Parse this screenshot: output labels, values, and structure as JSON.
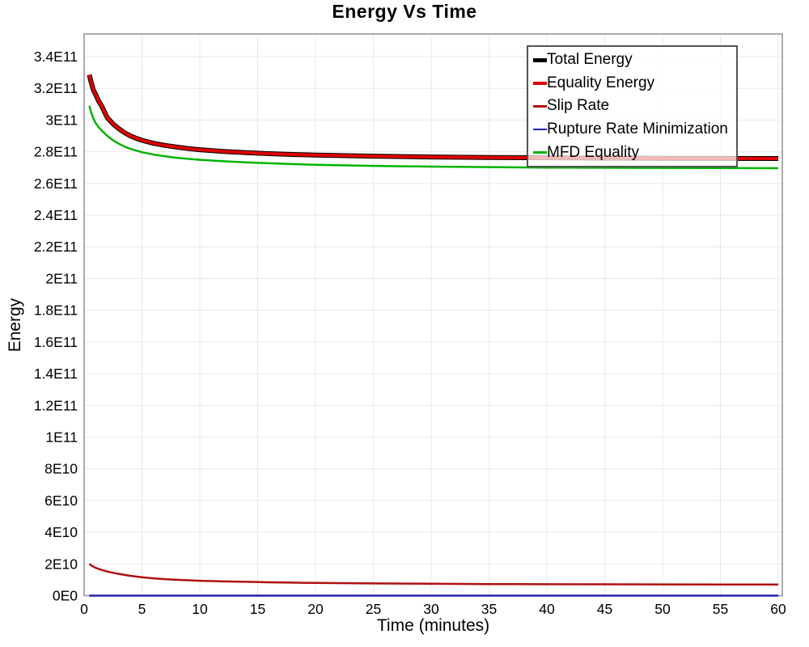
{
  "chart_data": {
    "type": "line",
    "title": "Energy Vs Time",
    "xlabel": "Time (minutes)",
    "ylabel": "Energy",
    "xlim": [
      0,
      60
    ],
    "ylim": [
      0,
      340000000000.0
    ],
    "grid": true,
    "legend_position": "top-right-inside",
    "legend_background": "rgba(255,255,255,0.72)",
    "x_ticks": {
      "values": [
        0,
        5,
        10,
        15,
        20,
        25,
        30,
        35,
        40,
        45,
        50,
        55,
        60
      ],
      "labels": [
        "0",
        "5",
        "10",
        "15",
        "20",
        "25",
        "30",
        "35",
        "40",
        "45",
        "50",
        "55",
        "60"
      ]
    },
    "y_ticks": {
      "values": [
        0,
        20000000000.0,
        40000000000.0,
        60000000000.0,
        80000000000.0,
        100000000000.0,
        120000000000.0,
        140000000000.0,
        160000000000.0,
        180000000000.0,
        200000000000.0,
        220000000000.0,
        240000000000.0,
        260000000000.0,
        280000000000.0,
        300000000000.0,
        320000000000.0,
        340000000000.0
      ],
      "labels": [
        "0E0",
        "2E10",
        "4E10",
        "6E10",
        "8E10",
        "1E11",
        "1.2E11",
        "1.4E11",
        "1.6E11",
        "1.8E11",
        "2E11",
        "2.2E11",
        "2.4E11",
        "2.6E11",
        "2.8E11",
        "3E11",
        "3.2E11",
        "3.4E11"
      ]
    },
    "series": [
      {
        "name": "Total Energy",
        "color": "#000000",
        "width": 6,
        "points": [
          [
            0.45,
            328500000000.0
          ],
          [
            0.6,
            324000000000.0
          ],
          [
            0.8,
            319000000000.0
          ],
          [
            1.0,
            316000000000.0
          ],
          [
            1.25,
            312000000000.0
          ],
          [
            1.5,
            309000000000.0
          ],
          [
            2,
            301500000000.0
          ],
          [
            2.5,
            297500000000.0
          ],
          [
            3,
            294500000000.0
          ],
          [
            3.5,
            292000000000.0
          ],
          [
            4,
            290000000000.0
          ],
          [
            4.5,
            288500000000.0
          ],
          [
            5,
            287200000000.0
          ],
          [
            6,
            285300000000.0
          ],
          [
            7,
            284000000000.0
          ],
          [
            8,
            282900000000.0
          ],
          [
            9,
            282000000000.0
          ],
          [
            10,
            281300000000.0
          ],
          [
            12,
            280200000000.0
          ],
          [
            14,
            279400000000.0
          ],
          [
            16,
            278800000000.0
          ],
          [
            18,
            278300000000.0
          ],
          [
            20,
            277900000000.0
          ],
          [
            25,
            277200000000.0
          ],
          [
            30,
            276700000000.0
          ],
          [
            35,
            276400000000.0
          ],
          [
            40,
            276200000000.0
          ],
          [
            45,
            276000000000.0
          ],
          [
            50,
            275900000000.0
          ],
          [
            55,
            275800000000.0
          ],
          [
            60,
            275700000000.0
          ]
        ]
      },
      {
        "name": "Equality Energy",
        "color": "#dd0000",
        "width": 4,
        "points": [
          [
            0.45,
            328500000000.0
          ],
          [
            0.6,
            324000000000.0
          ],
          [
            0.8,
            319000000000.0
          ],
          [
            1.0,
            316000000000.0
          ],
          [
            1.25,
            312000000000.0
          ],
          [
            1.5,
            309000000000.0
          ],
          [
            2,
            301500000000.0
          ],
          [
            2.5,
            297500000000.0
          ],
          [
            3,
            294500000000.0
          ],
          [
            3.5,
            292000000000.0
          ],
          [
            4,
            290000000000.0
          ],
          [
            4.5,
            288500000000.0
          ],
          [
            5,
            287200000000.0
          ],
          [
            6,
            285300000000.0
          ],
          [
            7,
            284000000000.0
          ],
          [
            8,
            282900000000.0
          ],
          [
            9,
            282000000000.0
          ],
          [
            10,
            281300000000.0
          ],
          [
            12,
            280200000000.0
          ],
          [
            14,
            279400000000.0
          ],
          [
            16,
            278800000000.0
          ],
          [
            18,
            278300000000.0
          ],
          [
            20,
            277900000000.0
          ],
          [
            25,
            277200000000.0
          ],
          [
            30,
            276700000000.0
          ],
          [
            35,
            276400000000.0
          ],
          [
            40,
            276200000000.0
          ],
          [
            45,
            276000000000.0
          ],
          [
            50,
            275900000000.0
          ],
          [
            55,
            275800000000.0
          ],
          [
            60,
            275700000000.0
          ]
        ]
      },
      {
        "name": "Slip Rate",
        "color": "#b01010",
        "width": 2.5,
        "points": [
          [
            0.45,
            20000000000.0
          ],
          [
            0.7,
            18700000000.0
          ],
          [
            1,
            17500000000.0
          ],
          [
            1.5,
            16200000000.0
          ],
          [
            2,
            15200000000.0
          ],
          [
            2.5,
            14400000000.0
          ],
          [
            3,
            13700000000.0
          ],
          [
            4,
            12500000000.0
          ],
          [
            5,
            11600000000.0
          ],
          [
            6,
            10900000000.0
          ],
          [
            7,
            10400000000.0
          ],
          [
            8,
            10000000000.0
          ],
          [
            9,
            9700000000.0
          ],
          [
            10,
            9400000000.0
          ],
          [
            12,
            9000000000.0
          ],
          [
            14,
            8700000000.0
          ],
          [
            16,
            8400000000.0
          ],
          [
            18,
            8200000000.0
          ],
          [
            20,
            8000000000.0
          ],
          [
            25,
            7700000000.0
          ],
          [
            30,
            7500000000.0
          ],
          [
            35,
            7300000000.0
          ],
          [
            40,
            7200000000.0
          ],
          [
            50,
            7100000000.0
          ],
          [
            60,
            7000000000.0
          ]
        ]
      },
      {
        "name": "Rupture Rate Minimization",
        "color": "#2020b0",
        "width": 2.5,
        "points": [
          [
            0.45,
            0
          ],
          [
            60,
            0
          ]
        ]
      },
      {
        "name": "MFD Equality",
        "color": "#00b400",
        "width": 2.5,
        "points": [
          [
            0.45,
            309000000000.0
          ],
          [
            0.6,
            305000000000.0
          ],
          [
            0.8,
            301000000000.0
          ],
          [
            1.0,
            298000000000.0
          ],
          [
            1.25,
            295500000000.0
          ],
          [
            1.5,
            293500000000.0
          ],
          [
            2,
            290000000000.0
          ],
          [
            2.5,
            287200000000.0
          ],
          [
            3,
            285000000000.0
          ],
          [
            3.5,
            283200000000.0
          ],
          [
            4,
            281800000000.0
          ],
          [
            5,
            279700000000.0
          ],
          [
            6,
            278200000000.0
          ],
          [
            7,
            277100000000.0
          ],
          [
            8,
            276200000000.0
          ],
          [
            9,
            275500000000.0
          ],
          [
            10,
            274900000000.0
          ],
          [
            12,
            274000000000.0
          ],
          [
            14,
            273300000000.0
          ],
          [
            16,
            272700000000.0
          ],
          [
            18,
            272200000000.0
          ],
          [
            20,
            271800000000.0
          ],
          [
            25,
            271100000000.0
          ],
          [
            30,
            270600000000.0
          ],
          [
            35,
            270300000000.0
          ],
          [
            40,
            270000000000.0
          ],
          [
            45,
            269900000000.0
          ],
          [
            50,
            269800000000.0
          ],
          [
            55,
            269700000000.0
          ],
          [
            60,
            269600000000.0
          ]
        ]
      }
    ]
  }
}
